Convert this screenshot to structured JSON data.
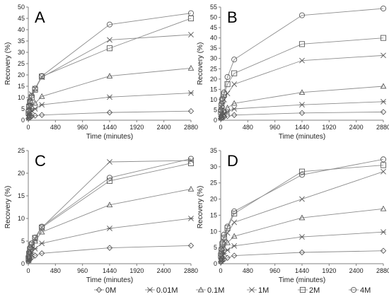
{
  "chart_data": [
    {
      "type": "line",
      "panel_label": "A",
      "xlabel": "Time (minutes)",
      "ylabel": "Recovery (%)",
      "xlim": [
        0,
        2880
      ],
      "ylim": [
        0,
        50
      ],
      "x_ticks": [
        0,
        480,
        960,
        1440,
        1920,
        2400,
        2880
      ],
      "y_ticks": [
        0,
        5,
        10,
        15,
        20,
        25,
        30,
        35,
        40,
        45,
        50
      ],
      "x": [
        5,
        15,
        30,
        60,
        120,
        240,
        1440,
        2880
      ],
      "series": [
        {
          "name": "0M",
          "marker": "diamond",
          "values": [
            0.8,
            1.0,
            1.3,
            1.7,
            2.0,
            2.3,
            3.4,
            4.0
          ]
        },
        {
          "name": "0.01M",
          "marker": "asterisk",
          "values": [
            1.0,
            2.0,
            3.0,
            4.2,
            5.0,
            6.8,
            10.2,
            12.0
          ]
        },
        {
          "name": "0.1M",
          "marker": "triangle",
          "values": [
            1.5,
            3.0,
            4.5,
            6.0,
            7.5,
            10.5,
            19.5,
            23.0
          ]
        },
        {
          "name": "1M",
          "marker": "x",
          "values": [
            3.0,
            6.0,
            8.0,
            11.5,
            14.0,
            19.0,
            35.5,
            37.8
          ]
        },
        {
          "name": "2M",
          "marker": "square",
          "values": [
            3.5,
            6.0,
            8.0,
            10.0,
            13.5,
            19.3,
            31.8,
            45.0
          ]
        },
        {
          "name": "4M",
          "marker": "circle",
          "values": [
            4.0,
            6.5,
            8.5,
            10.8,
            14.0,
            19.5,
            42.3,
            47.3
          ]
        }
      ]
    },
    {
      "type": "line",
      "panel_label": "B",
      "xlabel": "Time (minutes)",
      "ylabel": "Recovery (%)",
      "xlim": [
        0,
        2880
      ],
      "ylim": [
        0,
        55
      ],
      "x_ticks": [
        0,
        480,
        960,
        1440,
        1920,
        2400,
        2880
      ],
      "y_ticks": [
        0,
        5,
        10,
        15,
        20,
        25,
        30,
        35,
        40,
        45,
        50,
        55
      ],
      "x": [
        5,
        15,
        30,
        60,
        120,
        240,
        1440,
        2880
      ],
      "series": [
        {
          "name": "0M",
          "marker": "diamond",
          "values": [
            0.8,
            1.0,
            1.3,
            1.6,
            2.0,
            2.5,
            3.5,
            4.0
          ]
        },
        {
          "name": "0.01M",
          "marker": "asterisk",
          "values": [
            1.0,
            1.8,
            2.5,
            3.2,
            4.0,
            5.5,
            7.5,
            9.0
          ]
        },
        {
          "name": "0.1M",
          "marker": "triangle",
          "values": [
            1.5,
            2.5,
            3.5,
            4.5,
            6.0,
            8.2,
            13.5,
            16.5
          ]
        },
        {
          "name": "1M",
          "marker": "x",
          "values": [
            3.0,
            5.0,
            7.5,
            10.0,
            13.0,
            17.5,
            29.0,
            31.5
          ]
        },
        {
          "name": "2M",
          "marker": "square",
          "values": [
            4.0,
            7.0,
            9.5,
            12.5,
            17.5,
            22.8,
            37.0,
            40.0
          ]
        },
        {
          "name": "4M",
          "marker": "circle",
          "values": [
            5.0,
            8.0,
            10.5,
            13.5,
            21.0,
            29.5,
            51.0,
            54.3
          ]
        }
      ]
    },
    {
      "type": "line",
      "panel_label": "C",
      "xlabel": "Time (minutes)",
      "ylabel": "Recovery (%)",
      "xlim": [
        0,
        2880
      ],
      "ylim": [
        0,
        25
      ],
      "x_ticks": [
        0,
        480,
        960,
        1440,
        1920,
        2400,
        2880
      ],
      "y_ticks": [
        0,
        5,
        10,
        15,
        20,
        25
      ],
      "x": [
        5,
        15,
        30,
        60,
        120,
        240,
        1440,
        2880
      ],
      "series": [
        {
          "name": "0M",
          "marker": "diamond",
          "values": [
            0.5,
            0.8,
            1.0,
            1.3,
            1.8,
            2.3,
            3.5,
            4.0
          ]
        },
        {
          "name": "0.01M",
          "marker": "asterisk",
          "values": [
            0.7,
            1.2,
            1.8,
            2.5,
            3.3,
            4.5,
            7.8,
            10.0
          ]
        },
        {
          "name": "0.1M",
          "marker": "triangle",
          "values": [
            0.9,
            1.5,
            2.5,
            3.5,
            5.0,
            7.0,
            13.0,
            16.5
          ]
        },
        {
          "name": "1M",
          "marker": "x",
          "values": [
            1.0,
            2.0,
            3.0,
            4.0,
            5.5,
            8.0,
            22.5,
            22.8
          ]
        },
        {
          "name": "2M",
          "marker": "square",
          "values": [
            1.2,
            2.2,
            3.2,
            4.2,
            5.7,
            8.0,
            18.3,
            22.2
          ]
        },
        {
          "name": "4M",
          "marker": "circle",
          "values": [
            1.5,
            2.5,
            3.5,
            4.5,
            5.8,
            8.2,
            19.0,
            23.2
          ]
        }
      ]
    },
    {
      "type": "line",
      "panel_label": "D",
      "xlabel": "Time (minutes)",
      "ylabel": "Recovery (%)",
      "xlim": [
        0,
        2880
      ],
      "ylim": [
        0,
        35
      ],
      "x_ticks": [
        0,
        480,
        960,
        1440,
        1920,
        2400,
        2880
      ],
      "y_ticks": [
        0,
        5,
        10,
        15,
        20,
        25,
        30,
        35
      ],
      "x": [
        5,
        15,
        30,
        60,
        120,
        240,
        1440,
        2880
      ],
      "series": [
        {
          "name": "0M",
          "marker": "diamond",
          "values": [
            0.5,
            0.8,
            1.0,
            1.3,
            1.8,
            2.5,
            3.5,
            4.0
          ]
        },
        {
          "name": "0.01M",
          "marker": "asterisk",
          "values": [
            0.8,
            1.5,
            2.3,
            3.2,
            4.2,
            5.5,
            8.3,
            9.8
          ]
        },
        {
          "name": "0.1M",
          "marker": "triangle",
          "values": [
            1.2,
            2.3,
            3.5,
            4.8,
            6.5,
            8.5,
            14.2,
            17.0
          ]
        },
        {
          "name": "1M",
          "marker": "x",
          "values": [
            2.0,
            3.5,
            5.0,
            7.0,
            9.5,
            12.8,
            20.0,
            28.5
          ]
        },
        {
          "name": "2M",
          "marker": "square",
          "values": [
            2.5,
            4.0,
            6.0,
            8.0,
            11.0,
            15.5,
            28.5,
            30.5
          ]
        },
        {
          "name": "4M",
          "marker": "circle",
          "values": [
            3.0,
            4.5,
            6.5,
            9.0,
            11.5,
            16.2,
            27.5,
            32.3
          ]
        }
      ]
    }
  ],
  "legend": {
    "placement": "bottom",
    "entries": [
      {
        "label": "0M",
        "marker": "diamond"
      },
      {
        "label": "0.01M",
        "marker": "asterisk"
      },
      {
        "label": "0.1M",
        "marker": "triangle"
      },
      {
        "label": "1M",
        "marker": "x"
      },
      {
        "label": "2M",
        "marker": "square"
      },
      {
        "label": "4M",
        "marker": "circle"
      }
    ]
  },
  "colors": {
    "line": "#8c8c8c",
    "marker": "#5a5a5a",
    "axis": "#808080",
    "grid": "#d9d9d9"
  }
}
